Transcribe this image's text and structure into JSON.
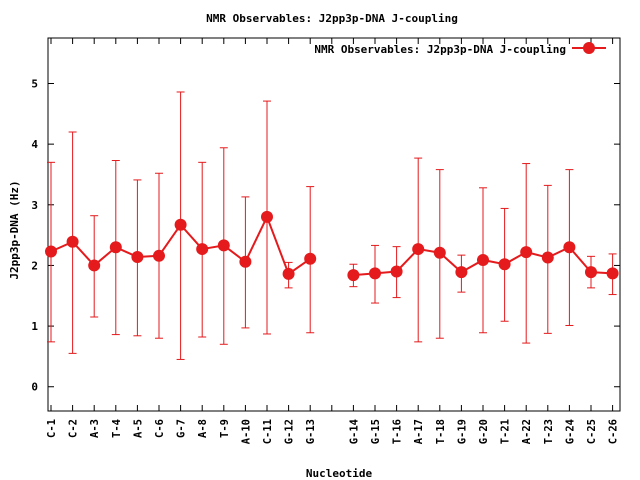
{
  "chart_data": {
    "type": "line",
    "title": "NMR Observables: J2pp3p-DNA J-coupling",
    "xlabel": "Nucleotide",
    "ylabel": "J2pp3p-DNA (Hz)",
    "ylim": [
      -0.4,
      5.75
    ],
    "yticks": [
      0,
      1,
      2,
      3,
      4,
      5
    ],
    "grid": false,
    "legend_position": "top-right",
    "color": "#e41a1c",
    "categories": [
      "C-1",
      "C-2",
      "A-3",
      "T-4",
      "A-5",
      "C-6",
      "G-7",
      "A-8",
      "T-9",
      "A-10",
      "C-11",
      "G-12",
      "G-13",
      "",
      "G-14",
      "G-15",
      "T-16",
      "A-17",
      "T-18",
      "G-19",
      "G-20",
      "T-21",
      "A-22",
      "T-23",
      "G-24",
      "C-25",
      "C-26"
    ],
    "series": [
      {
        "name": "NMR Observables: J2pp3p-DNA J-coupling",
        "values": [
          2.23,
          2.39,
          2.0,
          2.3,
          2.14,
          2.16,
          2.67,
          2.27,
          2.33,
          2.06,
          2.8,
          1.86,
          2.11,
          null,
          1.84,
          1.87,
          1.9,
          2.27,
          2.21,
          1.89,
          2.09,
          2.02,
          2.22,
          2.13,
          2.3,
          1.89,
          1.87
        ],
        "err_low": [
          0.74,
          0.55,
          1.15,
          0.86,
          0.84,
          0.8,
          0.45,
          0.82,
          0.7,
          0.97,
          0.87,
          1.63,
          0.89,
          null,
          1.65,
          1.38,
          1.47,
          0.74,
          0.8,
          1.56,
          0.89,
          1.08,
          0.72,
          0.88,
          1.01,
          1.63,
          1.52
        ],
        "err_high": [
          3.7,
          4.2,
          2.82,
          3.73,
          3.41,
          3.52,
          4.86,
          3.7,
          3.94,
          3.13,
          4.71,
          2.05,
          3.3,
          null,
          2.02,
          2.33,
          2.31,
          3.77,
          3.58,
          2.17,
          3.28,
          2.94,
          3.68,
          3.32,
          3.58,
          2.15,
          2.19
        ]
      }
    ]
  }
}
